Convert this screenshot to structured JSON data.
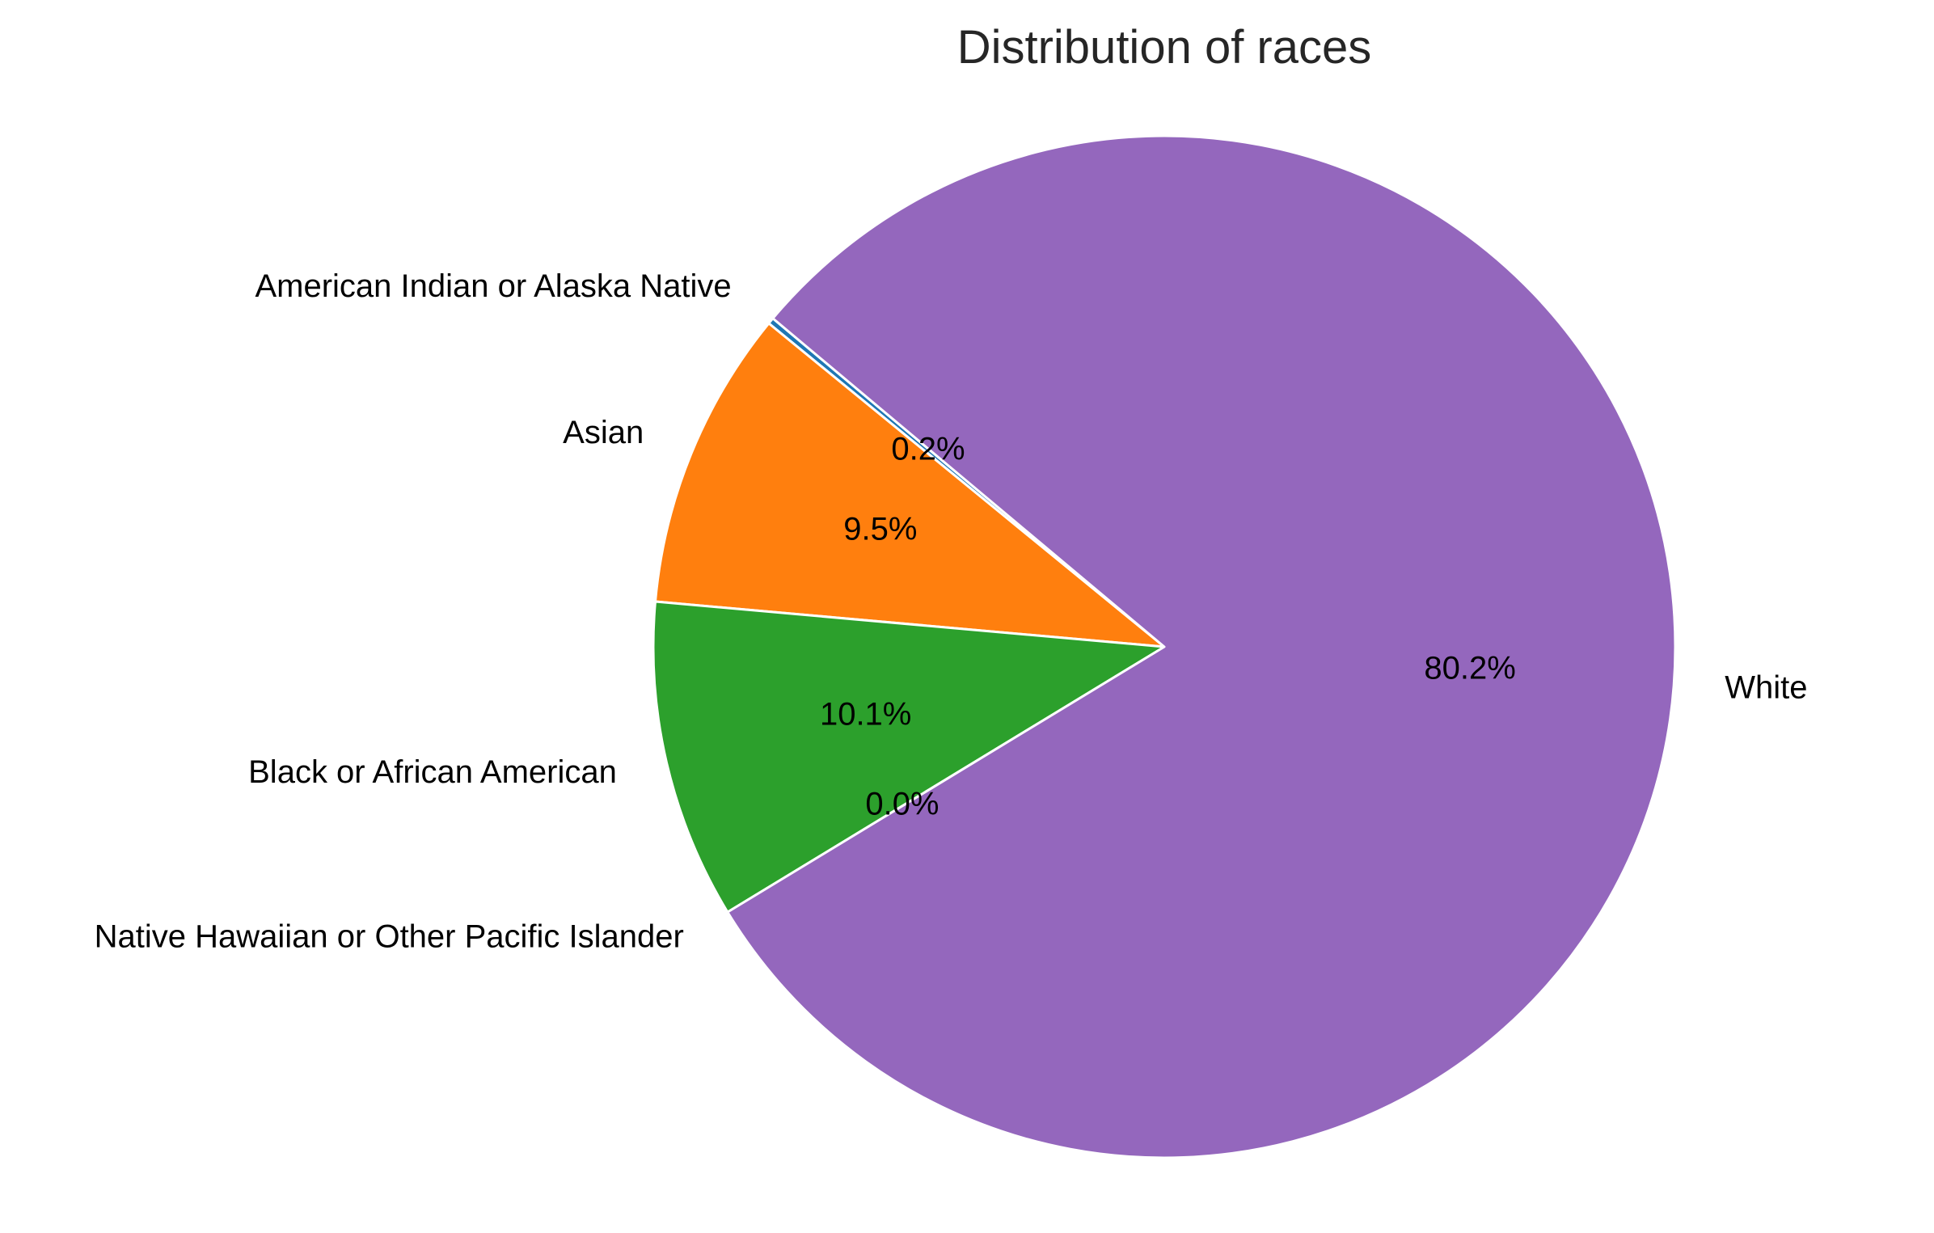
{
  "chart_data": {
    "type": "pie",
    "title": "Distribution of races",
    "labels": [
      "American Indian or Alaska Native",
      "Asian",
      "Black or African American",
      "Native Hawaiian or Other Pacific Islander",
      "White"
    ],
    "values": [
      0.2,
      9.5,
      10.1,
      0.0,
      80.2
    ],
    "pct_labels": [
      "0.2%",
      "9.5%",
      "10.1%",
      "0.0%",
      "80.2%"
    ],
    "colors": [
      "#1f77b4",
      "#ff7f0e",
      "#2ca02c",
      "#d62728",
      "#9467bd"
    ],
    "start_angle_deg": 140,
    "direction": "counterclockwise",
    "legend": "none"
  }
}
